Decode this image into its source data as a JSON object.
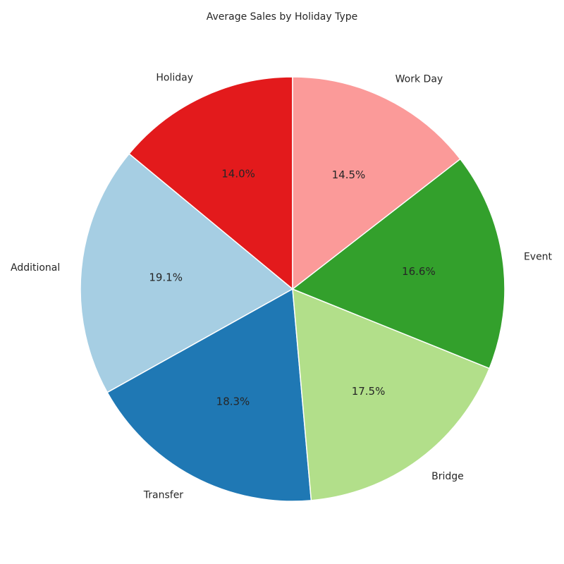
{
  "chart_data": {
    "type": "pie",
    "title": "Average Sales by Holiday Type",
    "categories": [
      "Holiday",
      "Additional",
      "Transfer",
      "Bridge",
      "Event",
      "Work Day"
    ],
    "values": [
      14.0,
      19.1,
      18.3,
      17.5,
      16.6,
      14.5
    ],
    "value_labels": [
      "14.0%",
      "19.1%",
      "18.3%",
      "17.5%",
      "16.6%",
      "14.5%"
    ],
    "colors": [
      "#e31a1c",
      "#a6cee3",
      "#1f78b4",
      "#b2df8a",
      "#33a02c",
      "#fb9a99"
    ],
    "start_angle_deg": 90,
    "direction": "counterclockwise"
  }
}
